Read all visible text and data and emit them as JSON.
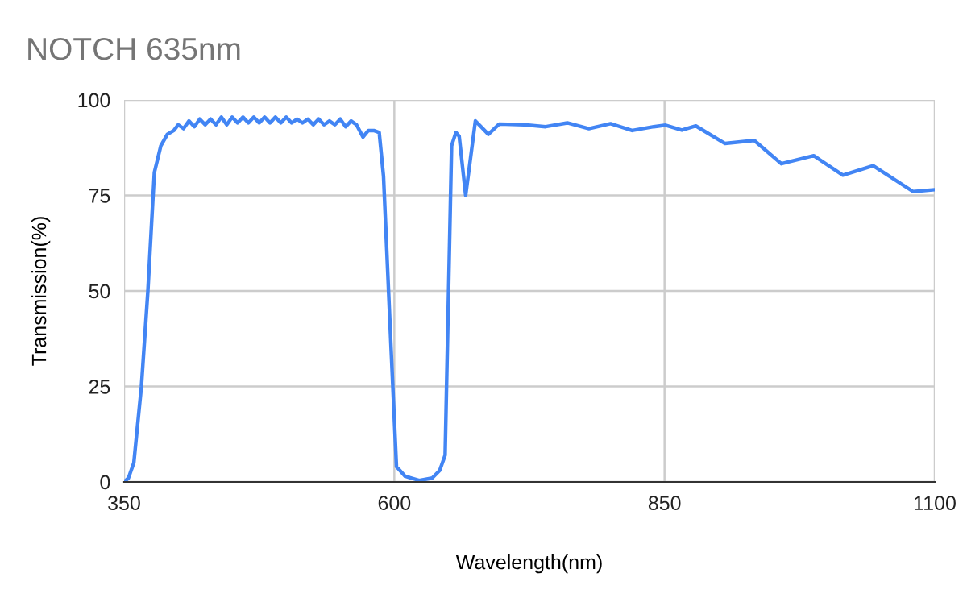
{
  "chart_data": {
    "type": "line",
    "title": "NOTCH 635nm",
    "xlabel": "Wavelength(nm)",
    "ylabel": "Transmission(%)",
    "series": [
      {
        "color": "#4285f4",
        "x": [
          350,
          354,
          359,
          366,
          372,
          378,
          384,
          390,
          396,
          400,
          405,
          410,
          415,
          420,
          425,
          430,
          435,
          440,
          445,
          450,
          455,
          460,
          465,
          470,
          475,
          480,
          485,
          490,
          495,
          500,
          505,
          510,
          515,
          520,
          525,
          530,
          535,
          540,
          545,
          550,
          555,
          560,
          565,
          571,
          576,
          581,
          586,
          590,
          597,
          602,
          610,
          623,
          635,
          642,
          647,
          653,
          657,
          660,
          666,
          675,
          687,
          697,
          720,
          740,
          760,
          780,
          800,
          820,
          840,
          851,
          866,
          879,
          906,
          933,
          958,
          988,
          1015,
          1043,
          1080,
          1100
        ],
        "values": [
          0,
          1,
          5,
          25,
          50,
          81,
          88,
          91,
          92,
          93.5,
          92.5,
          94.5,
          93,
          95,
          93.5,
          95,
          93.5,
          95.5,
          93.5,
          95.5,
          94,
          95.5,
          94,
          95.5,
          94,
          95.5,
          94,
          95.5,
          94,
          95.5,
          94,
          95,
          94,
          95,
          93.5,
          95,
          93.5,
          94.5,
          93.5,
          95,
          93,
          94.5,
          93.5,
          90.3,
          92,
          92,
          91.5,
          80,
          35,
          4,
          1.5,
          0.4,
          1,
          3,
          7,
          88,
          91.5,
          90.5,
          75,
          94.5,
          91,
          93.7,
          93.5,
          93,
          94,
          92.5,
          93.8,
          92,
          93,
          93.4,
          92.1,
          93.2,
          88.6,
          89.4,
          83.3,
          85.4,
          80.3,
          82.8,
          76,
          76.5
        ]
      }
    ],
    "xlim": [
      350,
      1100
    ],
    "xticks": [
      350,
      600,
      850,
      1100
    ],
    "ylim": [
      0,
      100
    ],
    "yticks": [
      0,
      25,
      50,
      75,
      100
    ],
    "grid": true,
    "legend": false,
    "marker": "none",
    "line_style": "solid"
  }
}
